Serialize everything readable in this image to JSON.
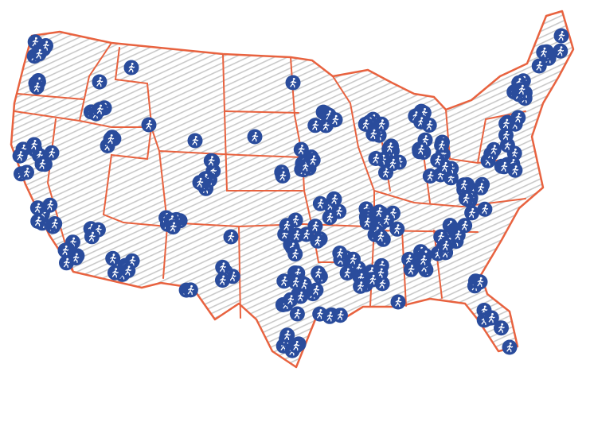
{
  "map": {
    "region": "United States",
    "marker_icon": "walking-person-icon",
    "colors": {
      "border": "#e8623f",
      "fill_hatch": "#cccccc",
      "marker_fill": "#2a4c9c",
      "marker_icon": "#ffffff"
    }
  }
}
